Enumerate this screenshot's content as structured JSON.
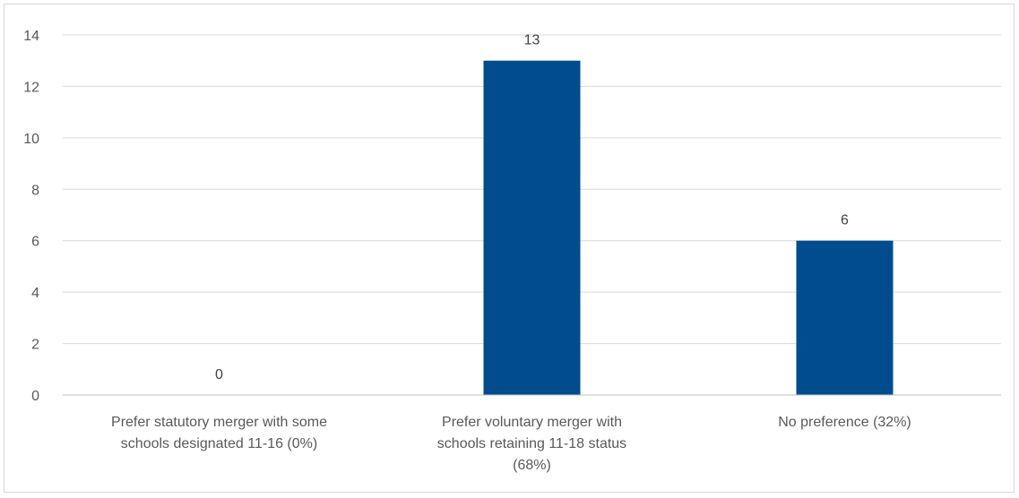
{
  "chart_data": {
    "type": "bar",
    "title": "",
    "xlabel": "",
    "ylabel": "",
    "categories": [
      "Prefer statutory merger with some schools designated 11-16 (0%)",
      "Prefer voluntary merger with schools retaining 11-18 status (68%)",
      "No preference (32%)"
    ],
    "category_lines": [
      [
        "Prefer statutory merger with some",
        "schools designated 11-16 (0%)"
      ],
      [
        "Prefer voluntary merger with",
        "schools retaining 11-18 status",
        "(68%)"
      ],
      [
        "No preference (32%)"
      ]
    ],
    "values": [
      0,
      13,
      6
    ],
    "data_labels": [
      "0",
      "13",
      "6"
    ],
    "ylim": [
      0,
      14
    ],
    "yticks": [
      0,
      2,
      4,
      6,
      8,
      10,
      12,
      14
    ],
    "grid": true,
    "legend": "none",
    "bar_color": "#004C8F",
    "gridline_color": "#d9d9d9",
    "axis_color": "#bfbfbf"
  }
}
